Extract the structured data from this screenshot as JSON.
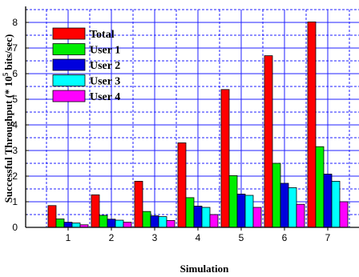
{
  "chart_data": {
    "type": "bar",
    "xlabel": "Simulation",
    "ylabel": "Successful Throughput (* 10",
    "ylabel_exponent": "5",
    "ylabel_suffix": " bits/sec)",
    "categories": [
      "1",
      "2",
      "3",
      "4",
      "5",
      "6",
      "7"
    ],
    "ylim": [
      0,
      8.5
    ],
    "yticks": [
      0,
      1,
      2,
      3,
      4,
      5,
      6,
      7,
      8
    ],
    "grid": true,
    "grid_color": "#2020ff",
    "legend_position": "top-left",
    "series": [
      {
        "name": "Total",
        "color": "#ff0000",
        "values": [
          0.85,
          1.27,
          1.8,
          3.3,
          5.38,
          6.7,
          8.02
        ]
      },
      {
        "name": "User 1",
        "color": "#00ee00",
        "values": [
          0.33,
          0.47,
          0.62,
          1.16,
          2.02,
          2.5,
          3.15
        ]
      },
      {
        "name": "User 2",
        "color": "#0000dd",
        "values": [
          0.2,
          0.32,
          0.45,
          0.83,
          1.3,
          1.72,
          2.08
        ]
      },
      {
        "name": "User 3",
        "color": "#00ffff",
        "values": [
          0.17,
          0.28,
          0.42,
          0.78,
          1.25,
          1.55,
          1.8
        ]
      },
      {
        "name": "User 4",
        "color": "#ff00ff",
        "values": [
          0.1,
          0.2,
          0.27,
          0.5,
          0.78,
          0.9,
          1.0
        ]
      }
    ]
  }
}
